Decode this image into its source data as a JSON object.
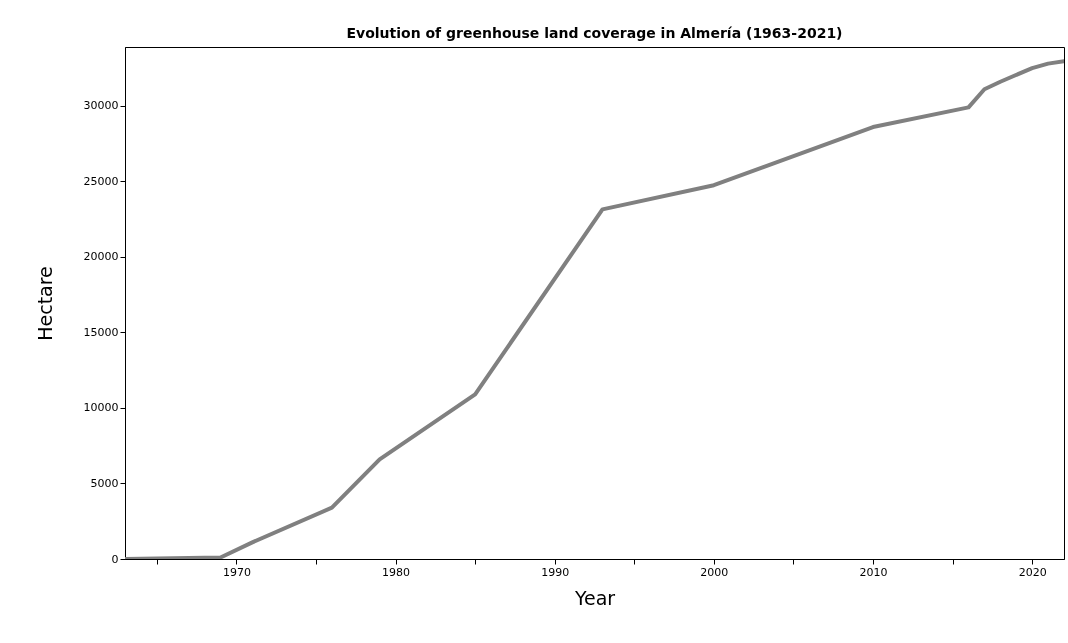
{
  "chart_data": {
    "type": "line",
    "title": "Evolution of greenhouse land coverage in Almería (1963-2021)",
    "xlabel": "Year",
    "ylabel": "Hectare",
    "x": [
      1963,
      1969,
      1971,
      1976,
      1979,
      1985,
      1993,
      2000,
      2010,
      2016,
      2017,
      2018,
      2020,
      2021,
      2022
    ],
    "series": [
      {
        "color": "#808080",
        "values": [
          0,
          100,
          1100,
          3400,
          6600,
          10900,
          23150,
          24750,
          28600,
          29900,
          31100,
          31600,
          32500,
          32800,
          32950
        ]
      }
    ],
    "xlim": [
      1963,
      2022
    ],
    "xticks": [
      {
        "value": 1965,
        "label": null
      },
      1970,
      {
        "value": 1975,
        "label": null
      },
      1980,
      {
        "value": 1985,
        "label": null
      },
      1990,
      {
        "value": 1995,
        "label": null
      },
      2000,
      {
        "value": 2005,
        "label": null
      },
      2010,
      {
        "value": 2015,
        "label": null
      },
      2020
    ],
    "ylim": [
      0,
      33900
    ],
    "yticks": [
      0,
      5000,
      10000,
      15000,
      20000,
      25000,
      30000
    ],
    "grid": false,
    "legend": false,
    "marker": "none",
    "line_style": "solid"
  }
}
